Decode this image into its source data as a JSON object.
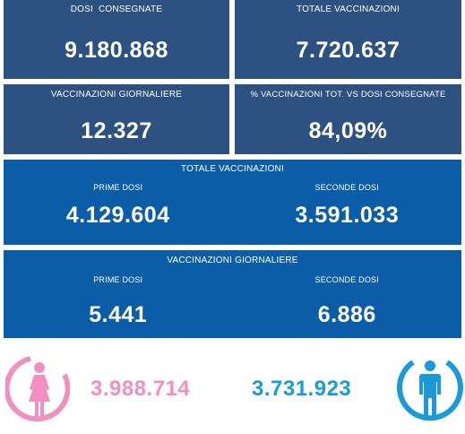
{
  "tiles": {
    "delivered": {
      "label": "DOSI  CONSEGNATE",
      "value": "9.180.868"
    },
    "total": {
      "label": "TOTALE VACCINAZIONI",
      "value": "7.720.637"
    },
    "daily": {
      "label": "VACCINAZIONI GIORNALIERE",
      "value": "12.327"
    },
    "ratio": {
      "label": "% VACCINAZIONI TOT. vs DOSI CONSEGNATE",
      "value": "84,09%"
    }
  },
  "total_block": {
    "title": "TOTALE VACCINAZIONI",
    "first": {
      "label": "PRIME DOSI",
      "value": "4.129.604"
    },
    "second": {
      "label": "SECONDE DOSI",
      "value": "3.591.033"
    }
  },
  "daily_block": {
    "title": "VACCINAZIONI GIORNALIERE",
    "first": {
      "label": "PRIME DOSI",
      "value": "5.441"
    },
    "second": {
      "label": "SECONDE DOSI",
      "value": "6.886"
    }
  },
  "gender": {
    "female": {
      "icon": "female-icon",
      "value": "3.988.714",
      "color": "#f08fc0"
    },
    "male": {
      "icon": "male-icon",
      "value": "3.731.923",
      "color": "#1a9ad6"
    }
  }
}
